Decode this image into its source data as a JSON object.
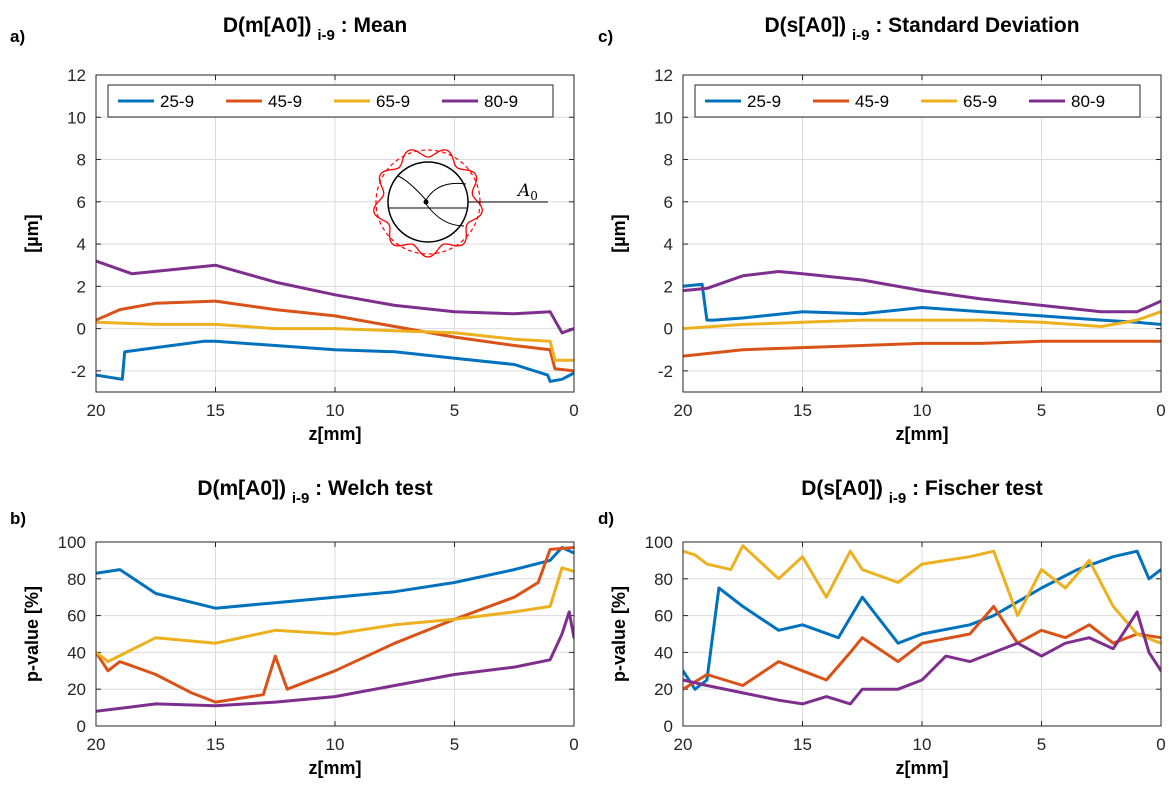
{
  "colors": {
    "25-9": "#0072bd",
    "45-9": "#d95319",
    "65-9": "#edb120",
    "80-9": "#7e2f8e"
  },
  "inset_label": "A",
  "inset_label_sub": "0",
  "chart_data": [
    {
      "panel": "a)",
      "type": "line",
      "title": "D(m[A0])",
      "title_sub": "i-9",
      "title_rest": ": Mean",
      "xlabel": "z[mm]",
      "ylabel": "[µm]",
      "xlim": [
        20,
        0
      ],
      "xreversed": true,
      "ylim": [
        -3,
        12
      ],
      "xticks": [
        20,
        15,
        10,
        5,
        0
      ],
      "yticks": [
        -2,
        0,
        2,
        4,
        6,
        8,
        10,
        12
      ],
      "grid": true,
      "legend": "top",
      "legend_entries": [
        "25-9",
        "45-9",
        "65-9",
        "80-9"
      ],
      "series": [
        {
          "name": "25-9",
          "x": [
            20,
            18.9,
            18.8,
            17.5,
            15.5,
            15,
            12.5,
            10,
            7.5,
            5,
            2.5,
            1.1,
            1,
            0.5,
            0
          ],
          "y": [
            -2.2,
            -2.4,
            -1.1,
            -0.9,
            -0.6,
            -0.6,
            -0.8,
            -1.0,
            -1.1,
            -1.4,
            -1.7,
            -2.2,
            -2.5,
            -2.4,
            -2.1
          ]
        },
        {
          "name": "45-9",
          "x": [
            20,
            19,
            17.5,
            15,
            12.5,
            10,
            7.5,
            5,
            2.5,
            1,
            0.8,
            0
          ],
          "y": [
            0.4,
            0.9,
            1.2,
            1.3,
            0.9,
            0.6,
            0.1,
            -0.4,
            -0.8,
            -1.0,
            -1.9,
            -2.0
          ]
        },
        {
          "name": "65-9",
          "x": [
            20,
            17.5,
            15,
            12.5,
            10,
            7.5,
            5,
            2.5,
            1,
            0.8,
            0
          ],
          "y": [
            0.3,
            0.2,
            0.2,
            0.0,
            0.0,
            -0.1,
            -0.2,
            -0.5,
            -0.6,
            -1.5,
            -1.5
          ]
        },
        {
          "name": "80-9",
          "x": [
            20,
            18.5,
            15,
            12.5,
            10,
            7.5,
            5,
            2.5,
            1,
            0.5,
            0
          ],
          "y": [
            3.2,
            2.6,
            3.0,
            2.2,
            1.6,
            1.1,
            0.8,
            0.7,
            0.8,
            -0.2,
            0.0
          ]
        }
      ]
    },
    {
      "panel": "c)",
      "type": "line",
      "title": "D(s[A0])",
      "title_sub": "i-9",
      "title_rest": ": Standard Deviation",
      "xlabel": "z[mm]",
      "ylabel": "[µm]",
      "xlim": [
        20,
        0
      ],
      "xreversed": true,
      "ylim": [
        -3,
        12
      ],
      "xticks": [
        20,
        15,
        10,
        5,
        0
      ],
      "yticks": [
        -2,
        0,
        2,
        4,
        6,
        8,
        10,
        12
      ],
      "grid": true,
      "legend": "top",
      "legend_entries": [
        "25-9",
        "45-9",
        "65-9",
        "80-9"
      ],
      "series": [
        {
          "name": "25-9",
          "x": [
            20,
            19.2,
            19,
            18.7,
            17.5,
            15,
            12.5,
            10,
            7.5,
            5,
            2.5,
            1,
            0
          ],
          "y": [
            2.0,
            2.1,
            0.4,
            0.4,
            0.5,
            0.8,
            0.7,
            1.0,
            0.8,
            0.6,
            0.4,
            0.3,
            0.2
          ]
        },
        {
          "name": "45-9",
          "x": [
            20,
            17.5,
            15,
            12.5,
            10,
            7.5,
            5,
            2.5,
            0
          ],
          "y": [
            -1.3,
            -1.0,
            -0.9,
            -0.8,
            -0.7,
            -0.7,
            -0.6,
            -0.6,
            -0.6
          ]
        },
        {
          "name": "65-9",
          "x": [
            20,
            17.5,
            15,
            12.5,
            10,
            7.5,
            5,
            2.5,
            1,
            0
          ],
          "y": [
            0.0,
            0.2,
            0.3,
            0.4,
            0.4,
            0.4,
            0.3,
            0.1,
            0.4,
            0.8
          ]
        },
        {
          "name": "80-9",
          "x": [
            20,
            19,
            17.5,
            16,
            15,
            12.5,
            10,
            7.5,
            5,
            2.5,
            1,
            0
          ],
          "y": [
            1.8,
            1.9,
            2.5,
            2.7,
            2.6,
            2.3,
            1.8,
            1.4,
            1.1,
            0.8,
            0.8,
            1.3
          ]
        }
      ]
    },
    {
      "panel": "b)",
      "type": "line",
      "title": "D(m[A0])",
      "title_sub": "i-9",
      "title_rest": ": Welch test",
      "xlabel": "z[mm]",
      "ylabel": "p-value [%]",
      "xlim": [
        20,
        0
      ],
      "xreversed": true,
      "ylim": [
        0,
        100
      ],
      "xticks": [
        20,
        15,
        10,
        5,
        0
      ],
      "yticks": [
        0,
        20,
        40,
        60,
        80,
        100
      ],
      "grid": true,
      "series": [
        {
          "name": "25-9",
          "x": [
            20,
            19,
            17.5,
            15,
            12.5,
            10,
            7.5,
            5,
            2.5,
            1,
            0.5,
            0
          ],
          "y": [
            83,
            85,
            72,
            64,
            67,
            70,
            73,
            78,
            85,
            90,
            97,
            94
          ]
        },
        {
          "name": "45-9",
          "x": [
            20,
            19.5,
            19,
            17.5,
            16,
            15,
            14,
            13,
            12.5,
            12,
            10,
            7.5,
            5,
            2.5,
            1.5,
            1,
            0
          ],
          "y": [
            40,
            30,
            35,
            28,
            18,
            13,
            15,
            17,
            38,
            20,
            30,
            45,
            58,
            70,
            78,
            96,
            97
          ]
        },
        {
          "name": "65-9",
          "x": [
            20,
            19.5,
            17.5,
            15,
            12.5,
            10,
            7.5,
            5,
            2.5,
            1,
            0.5,
            0
          ],
          "y": [
            40,
            35,
            48,
            45,
            52,
            50,
            55,
            58,
            62,
            65,
            86,
            84
          ]
        },
        {
          "name": "80-9",
          "x": [
            20,
            17.5,
            15,
            12.5,
            10,
            7.5,
            5,
            2.5,
            1,
            0.5,
            0.2,
            0
          ],
          "y": [
            8,
            12,
            11,
            13,
            16,
            22,
            28,
            32,
            36,
            50,
            62,
            48
          ]
        }
      ]
    },
    {
      "panel": "d)",
      "type": "line",
      "title": "D(s[A0])",
      "title_sub": "i-9",
      "title_rest": ": Fischer test",
      "xlabel": "z[mm]",
      "ylabel": "p-value [%]",
      "xlim": [
        20,
        0
      ],
      "xreversed": true,
      "ylim": [
        0,
        100
      ],
      "xticks": [
        20,
        15,
        10,
        5,
        0
      ],
      "yticks": [
        0,
        20,
        40,
        60,
        80,
        100
      ],
      "grid": true,
      "series": [
        {
          "name": "25-9",
          "x": [
            20,
            19.5,
            19,
            18.5,
            17.5,
            16,
            15,
            13.5,
            12.5,
            11,
            10,
            8,
            7,
            5,
            3.5,
            2,
            1,
            0.5,
            0
          ],
          "y": [
            30,
            20,
            25,
            75,
            65,
            52,
            55,
            48,
            70,
            45,
            50,
            55,
            60,
            75,
            85,
            92,
            95,
            80,
            85
          ]
        },
        {
          "name": "45-9",
          "x": [
            20,
            19,
            17.5,
            16,
            15,
            14,
            13,
            12.5,
            11,
            10,
            8,
            7,
            6,
            5,
            4,
            3,
            2,
            1,
            0
          ],
          "y": [
            20,
            28,
            22,
            35,
            30,
            25,
            40,
            48,
            35,
            45,
            50,
            65,
            45,
            52,
            48,
            55,
            45,
            50,
            48
          ]
        },
        {
          "name": "65-9",
          "x": [
            20,
            19.5,
            19,
            18,
            17.5,
            16,
            15,
            14,
            13,
            12.5,
            11,
            10,
            8,
            7,
            6,
            5,
            4,
            3,
            2,
            1,
            0
          ],
          "y": [
            95,
            93,
            88,
            85,
            98,
            80,
            92,
            70,
            95,
            85,
            78,
            88,
            92,
            95,
            60,
            85,
            75,
            90,
            65,
            50,
            45
          ]
        },
        {
          "name": "80-9",
          "x": [
            20,
            19,
            17.5,
            16,
            15,
            14,
            13,
            12.5,
            11,
            10,
            9,
            8,
            7,
            6,
            5,
            4,
            3,
            2,
            1,
            0.5,
            0
          ],
          "y": [
            25,
            22,
            18,
            14,
            12,
            16,
            12,
            20,
            20,
            25,
            38,
            35,
            40,
            45,
            38,
            45,
            48,
            42,
            62,
            40,
            30
          ]
        }
      ]
    }
  ]
}
